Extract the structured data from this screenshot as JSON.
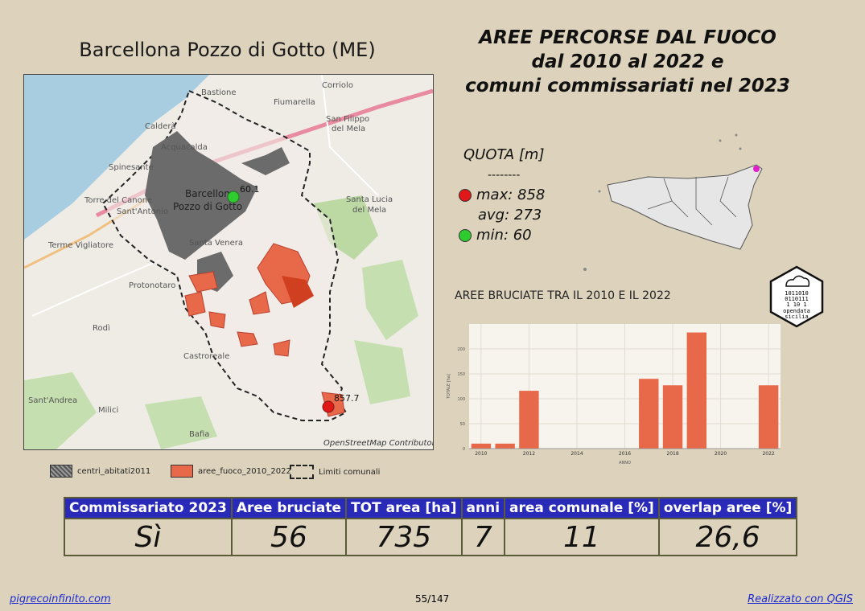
{
  "place_title": "Barcellona Pozzo di Gotto (ME)",
  "main_title": [
    "AREE PERCORSE DAL FUOCO",
    "dal 2010 al 2022 e",
    "comuni commissariati nel 2023"
  ],
  "map": {
    "labels": [
      "Bastione",
      "Corriolo",
      "Fiumarella",
      "San Filippo",
      "del Mela",
      "Calderà",
      "Acquacalda",
      "Spinesante",
      "Torre del Canone",
      "Sant'Antonio",
      "Barcellona",
      "Pozzo di Gotto",
      "Santa Lucia",
      "del Mela",
      "Terme Vigliatore",
      "Sant'Andrea",
      "Protonotaro",
      "Rodì",
      "Castroreale",
      "Milici",
      "Bafia",
      "Santa Venera"
    ],
    "min_label": "60.1",
    "max_label": "857.7",
    "attribution": "OpenStreetMap Contributor"
  },
  "legend": [
    {
      "label": "centri_abitati2011",
      "color": "#6b6b6b"
    },
    {
      "label": "aree_fuoco_2010_2022",
      "color": "#e8694a"
    },
    {
      "label": "Limiti comunali",
      "color": "#222222"
    }
  ],
  "quota": {
    "title": "QUOTA [m]",
    "divider": "--------",
    "max": "max: 858",
    "avg": "avg: 273",
    "min": "min: 60",
    "max_color": "#e01818",
    "min_color": "#2ecc2e"
  },
  "logo": [
    "1011010",
    "0110111",
    "1 10 1",
    "opendata",
    "sicilia"
  ],
  "chart_title": "AREE BRUCIATE TRA IL 2010 E IL 2022",
  "chart_data": {
    "type": "bar",
    "x": [
      2010,
      2011,
      2012,
      2013,
      2014,
      2015,
      2016,
      2017,
      2018,
      2019,
      2020,
      2021,
      2022
    ],
    "values": [
      10,
      10,
      116,
      0,
      0,
      0,
      0,
      140,
      127,
      233,
      0,
      0,
      127
    ],
    "xticks": [
      "2010",
      "2012",
      "2014",
      "2016",
      "2018",
      "2020",
      "2022"
    ],
    "yticks": [
      "0",
      "50",
      "100",
      "150",
      "200"
    ],
    "ylim": [
      0,
      250
    ],
    "xlabel": "ANNO",
    "ylabel": "TOTALE [ha]",
    "color": "#e8694a"
  },
  "table": {
    "headers": [
      "Commissariato 2023",
      "Aree bruciate",
      "TOT area [ha]",
      "anni",
      "area comunale [%]",
      "overlap aree [%]"
    ],
    "values": [
      "Sì",
      "56",
      "735",
      "7",
      "11",
      "26,6"
    ]
  },
  "footer": {
    "left": "pigrecoinfinito.com",
    "center": "55/147",
    "right": "Realizzato con QGIS"
  }
}
